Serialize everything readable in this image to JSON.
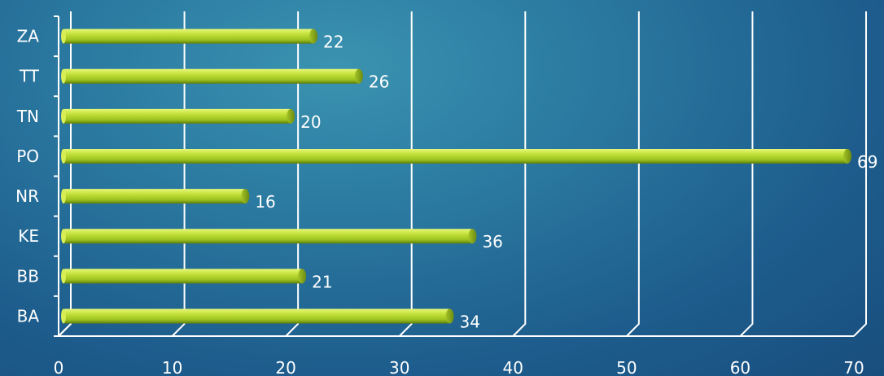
{
  "chart_data": {
    "type": "bar",
    "orientation": "horizontal",
    "categories": [
      "BA",
      "BB",
      "KE",
      "NR",
      "PO",
      "TN",
      "TT",
      "ZA"
    ],
    "values": [
      34,
      21,
      36,
      16,
      69,
      20,
      26,
      22
    ],
    "title": "",
    "xlabel": "",
    "ylabel": "",
    "xlim": [
      0,
      70
    ],
    "xticks": [
      0,
      10,
      20,
      30,
      40,
      50,
      60,
      70
    ],
    "grid": true,
    "legend": "none",
    "bar_color": "#b5d629",
    "background_color": "#2a78a0",
    "text_color": "#ffffff"
  }
}
